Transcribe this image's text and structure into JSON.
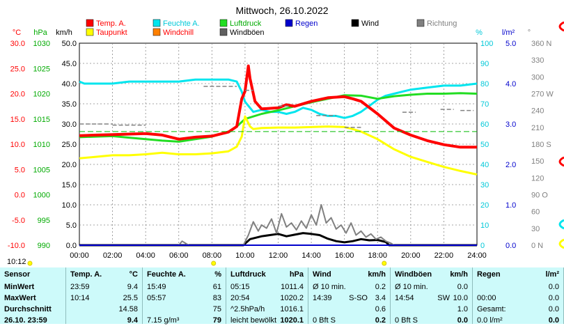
{
  "title": "Mittwoch, 26.10.2022",
  "legend": [
    {
      "name": "Temp. A.",
      "color": "#ff0000",
      "text_color": "#ff0000"
    },
    {
      "name": "Feuchte A.",
      "color": "#00e5ee",
      "text_color": "#00c8d8"
    },
    {
      "name": "Luftdruck",
      "color": "#22dd22",
      "text_color": "#00aa00"
    },
    {
      "name": "Regen",
      "color": "#0000cc",
      "text_color": "#0000cc"
    },
    {
      "name": "Wind",
      "color": "#000000",
      "text_color": "#000000"
    },
    {
      "name": "Richtung",
      "color": "#808080",
      "text_color": "#808080"
    },
    {
      "name": "Taupunkt",
      "color": "#ffff00",
      "text_color": "#ff0000"
    },
    {
      "name": "Windchill",
      "color": "#ff8000",
      "text_color": "#ff0000"
    },
    {
      "name": "Windböen",
      "color": "#606060",
      "text_color": "#000000"
    }
  ],
  "axis_units": {
    "temp": "°C",
    "press": "hPa",
    "wind": "km/h",
    "hum": "%",
    "rain": "l/m²",
    "dir": "°"
  },
  "chart_data": {
    "type": "line",
    "x_ticks": [
      "00:00",
      "02:00",
      "04:00",
      "06:00",
      "08:00",
      "10:00",
      "12:00",
      "14:00",
      "16:00",
      "18:00",
      "20:00",
      "22:00",
      "24:00"
    ],
    "xlim_hours": [
      0,
      24
    ],
    "axes": {
      "temp": {
        "ticks": [
          "30.0",
          "25.0",
          "20.0",
          "15.0",
          "10.0",
          "5.0",
          "0.0",
          "-5.0",
          "-10.0"
        ],
        "range": [
          -10,
          30
        ]
      },
      "press": {
        "ticks": [
          "1030",
          "1025",
          "1020",
          "1015",
          "1010",
          "1005",
          "1000",
          "995",
          "990"
        ],
        "range": [
          990,
          1030
        ]
      },
      "wind": {
        "ticks": [
          "50.0",
          "45.0",
          "40.0",
          "35.0",
          "30.0",
          "25.0",
          "20.0",
          "15.0",
          "10.0",
          "5.0",
          "0.0"
        ],
        "range": [
          0,
          50
        ]
      },
      "hum": {
        "ticks": [
          "100",
          "90",
          "80",
          "70",
          "60",
          "50",
          "40",
          "30",
          "20",
          "10",
          "0"
        ],
        "range": [
          0,
          100
        ]
      },
      "rain": {
        "ticks": [
          "5.0",
          "4.0",
          "3.0",
          "2.0",
          "1.0",
          "0.0"
        ],
        "range": [
          0,
          5
        ]
      },
      "dir": {
        "ticks": [
          "360 N",
          "330",
          "300",
          "270 W",
          "240",
          "210",
          "180 S",
          "150",
          "120",
          "90 O",
          "60",
          "30",
          "0 N"
        ],
        "range": [
          0,
          360
        ]
      }
    },
    "grid": true,
    "series": [
      {
        "name": "Feuchte A.",
        "axis": "hum",
        "color": "#00e5ee",
        "x": [
          0,
          0.3,
          1,
          2,
          3,
          4,
          5,
          6,
          7,
          8,
          9,
          9.5,
          9.8,
          10,
          10.5,
          11,
          11.5,
          12,
          12.5,
          13,
          13.5,
          14,
          14.5,
          15,
          15.5,
          16,
          16.5,
          17,
          17.5,
          18,
          18.5,
          19,
          19.5,
          20,
          21,
          22,
          23,
          24
        ],
        "y": [
          81,
          80,
          80,
          80,
          81,
          81,
          81,
          81,
          82,
          82,
          82,
          81,
          76,
          71,
          66,
          67,
          66,
          66,
          65,
          66,
          68,
          67,
          65,
          64,
          64,
          63,
          64,
          66,
          69,
          72,
          74,
          75,
          76,
          77,
          78,
          79,
          79,
          80
        ]
      },
      {
        "name": "Luftdruck",
        "axis": "press",
        "color": "#22dd22",
        "x": [
          0,
          1,
          2,
          3,
          4,
          5,
          6,
          7,
          8,
          9,
          9.5,
          10,
          11,
          12,
          13,
          14,
          15,
          16,
          17,
          18,
          19,
          20,
          21,
          22,
          23,
          24
        ],
        "y": [
          1011.4,
          1011.5,
          1011.6,
          1011.3,
          1011.0,
          1010.7,
          1010.5,
          1011.0,
          1011.5,
          1012.5,
          1013.5,
          1015.0,
          1016.0,
          1016.7,
          1017.5,
          1018.3,
          1019.0,
          1019.7,
          1019.6,
          1019.0,
          1019.5,
          1019.8,
          1020.0,
          1020.0,
          1020.1,
          1020.0
        ]
      },
      {
        "name": "Taupunkt",
        "axis": "temp",
        "color": "#ffff00",
        "x": [
          0,
          1,
          2,
          3,
          4,
          5,
          6,
          7,
          8,
          9,
          9.5,
          9.8,
          10,
          10.3,
          10.5,
          11,
          12,
          13,
          14,
          15,
          16,
          16.5,
          17,
          18,
          19,
          20,
          21,
          22,
          23,
          24
        ],
        "y": [
          7.2,
          7.5,
          7.8,
          7.8,
          8.0,
          8.3,
          8.0,
          8.0,
          8.2,
          8.6,
          9.5,
          11.5,
          15.5,
          13.5,
          13.0,
          13.2,
          13.3,
          13.3,
          13.4,
          13.5,
          13.4,
          13.0,
          12.5,
          11.0,
          9.0,
          7.5,
          6.5,
          5.5,
          4.7,
          4.0
        ]
      },
      {
        "name": "Temp. A.",
        "axis": "temp",
        "color": "#ff0000",
        "x": [
          0,
          1,
          2,
          3,
          4,
          5,
          6,
          7,
          8,
          9,
          9.5,
          9.8,
          10,
          10.2,
          10.3,
          10.6,
          11,
          12,
          12.5,
          13,
          14,
          15,
          16,
          16.5,
          17,
          18,
          19,
          20,
          21,
          22,
          23,
          24
        ],
        "y": [
          11.7,
          11.8,
          11.9,
          12.0,
          12.1,
          11.8,
          11.0,
          11.4,
          11.6,
          12.4,
          13.5,
          19.0,
          20.5,
          25.5,
          23.0,
          18.5,
          17.0,
          17.2,
          17.8,
          17.5,
          18.5,
          19.2,
          19.4,
          19.0,
          18.5,
          16.0,
          13.2,
          11.8,
          10.7,
          9.9,
          9.4,
          9.4
        ]
      },
      {
        "name": "Wind",
        "axis": "wind",
        "color": "#000000",
        "x": [
          0,
          9.9,
          10.3,
          11,
          11.5,
          12,
          12.5,
          13,
          13.5,
          14,
          14.5,
          15,
          15.5,
          16,
          16.5,
          17,
          17.5,
          18,
          18.5,
          18.7,
          24
        ],
        "y": [
          0,
          0,
          1.5,
          2.2,
          2.5,
          2.8,
          2.2,
          2.6,
          3.0,
          2.8,
          2.5,
          1.6,
          1.0,
          0.7,
          1.0,
          1.5,
          1.2,
          1.3,
          0.8,
          0,
          0
        ]
      },
      {
        "name": "Windböen",
        "axis": "wind",
        "color": "#808080",
        "x": [
          0,
          6,
          6.2,
          6.4,
          6.6,
          9.9,
          10.2,
          10.5,
          10.8,
          11,
          11.3,
          11.6,
          11.9,
          12.2,
          12.5,
          12.8,
          13.1,
          13.4,
          13.7,
          14,
          14.3,
          14.6,
          14.9,
          15.2,
          15.5,
          15.8,
          16.1,
          16.4,
          16.7,
          17,
          17.3,
          17.6,
          17.9,
          18.2,
          18.5,
          18.8,
          19,
          24
        ],
        "y": [
          0,
          0,
          1,
          0.5,
          0,
          0,
          2.5,
          5.8,
          3.5,
          5.0,
          4.2,
          6.5,
          3.0,
          7.8,
          4.5,
          5.5,
          3.8,
          6.0,
          4.2,
          7.5,
          5.0,
          10.0,
          5.5,
          6.8,
          4.0,
          5.0,
          3.0,
          5.5,
          2.5,
          3.5,
          2.0,
          2.8,
          1.5,
          2.0,
          1.0,
          0.5,
          0,
          0
        ]
      },
      {
        "name": "Regen",
        "axis": "rain",
        "color": "#0000cc",
        "x": [
          0,
          24
        ],
        "y": [
          0,
          0
        ]
      }
    ],
    "richtung_segments": [
      {
        "x0": 0,
        "x1": 2,
        "deg": 216
      },
      {
        "x0": 2,
        "x1": 4,
        "deg": 214
      },
      {
        "x0": 7.5,
        "x1": 9.5,
        "deg": 283
      },
      {
        "x0": 10,
        "x1": 10.5,
        "deg": 276
      },
      {
        "x0": 12,
        "x1": 12.7,
        "deg": 248
      },
      {
        "x0": 14.3,
        "x1": 15.5,
        "deg": 231
      },
      {
        "x0": 16,
        "x1": 17,
        "deg": 210
      },
      {
        "x0": 19.5,
        "x1": 20.3,
        "deg": 237
      },
      {
        "x0": 21.8,
        "x1": 22.6,
        "deg": 242
      },
      {
        "x0": 23,
        "x1": 23.8,
        "deg": 240
      }
    ],
    "windchill_ref": 12.5
  },
  "time_cursor": "10:12",
  "summary": {
    "columns": [
      {
        "title": "Sensor",
        "unit": "",
        "rows": [
          "MinWert",
          "MaxWert",
          "Durchschnitt",
          "26.10. 23:59"
        ]
      },
      {
        "title": "Temp. A.",
        "unit": "°C",
        "rows_l": [
          "23:59",
          "10:14",
          "",
          ""
        ],
        "rows_r": [
          "9.4",
          "25.5",
          "14.58",
          "9.4"
        ]
      },
      {
        "title": "Feuchte A.",
        "unit": "%",
        "rows_l": [
          "15:49",
          "05:57",
          "",
          "7.15 g/m³"
        ],
        "rows_r": [
          "61",
          "83",
          "75",
          "79"
        ]
      },
      {
        "title": "Luftdruck",
        "unit": "hPa",
        "rows_l": [
          "05:15",
          "20:54",
          "^2.5hPa/h",
          "leicht bewölkt"
        ],
        "rows_r": [
          "1011.4",
          "1020.2",
          "1016.1",
          "1020.1"
        ]
      },
      {
        "title": "Wind",
        "unit": "km/h",
        "rows_l": [
          "Ø 10 min.",
          "14:39",
          "",
          "0 Bft S"
        ],
        "rows_m": [
          "",
          "S-SO",
          "",
          ""
        ],
        "rows_r": [
          "0.2",
          "3.4",
          "0.6",
          "0.2"
        ]
      },
      {
        "title": "Windböen",
        "unit": "km/h",
        "rows_l": [
          "Ø 10 min.",
          "14:54",
          "",
          "0 Bft S"
        ],
        "rows_m": [
          "",
          "SW",
          "",
          ""
        ],
        "rows_r": [
          "0.0",
          "10.0",
          "1.0",
          "0.0"
        ]
      },
      {
        "title": "Regen",
        "unit": "l/m²",
        "rows_l": [
          "",
          "00:00",
          "Gesamt:",
          "0.0 l/m²"
        ],
        "rows_r": [
          "0.0",
          "0.0",
          "0.0",
          "0.0"
        ]
      }
    ]
  }
}
